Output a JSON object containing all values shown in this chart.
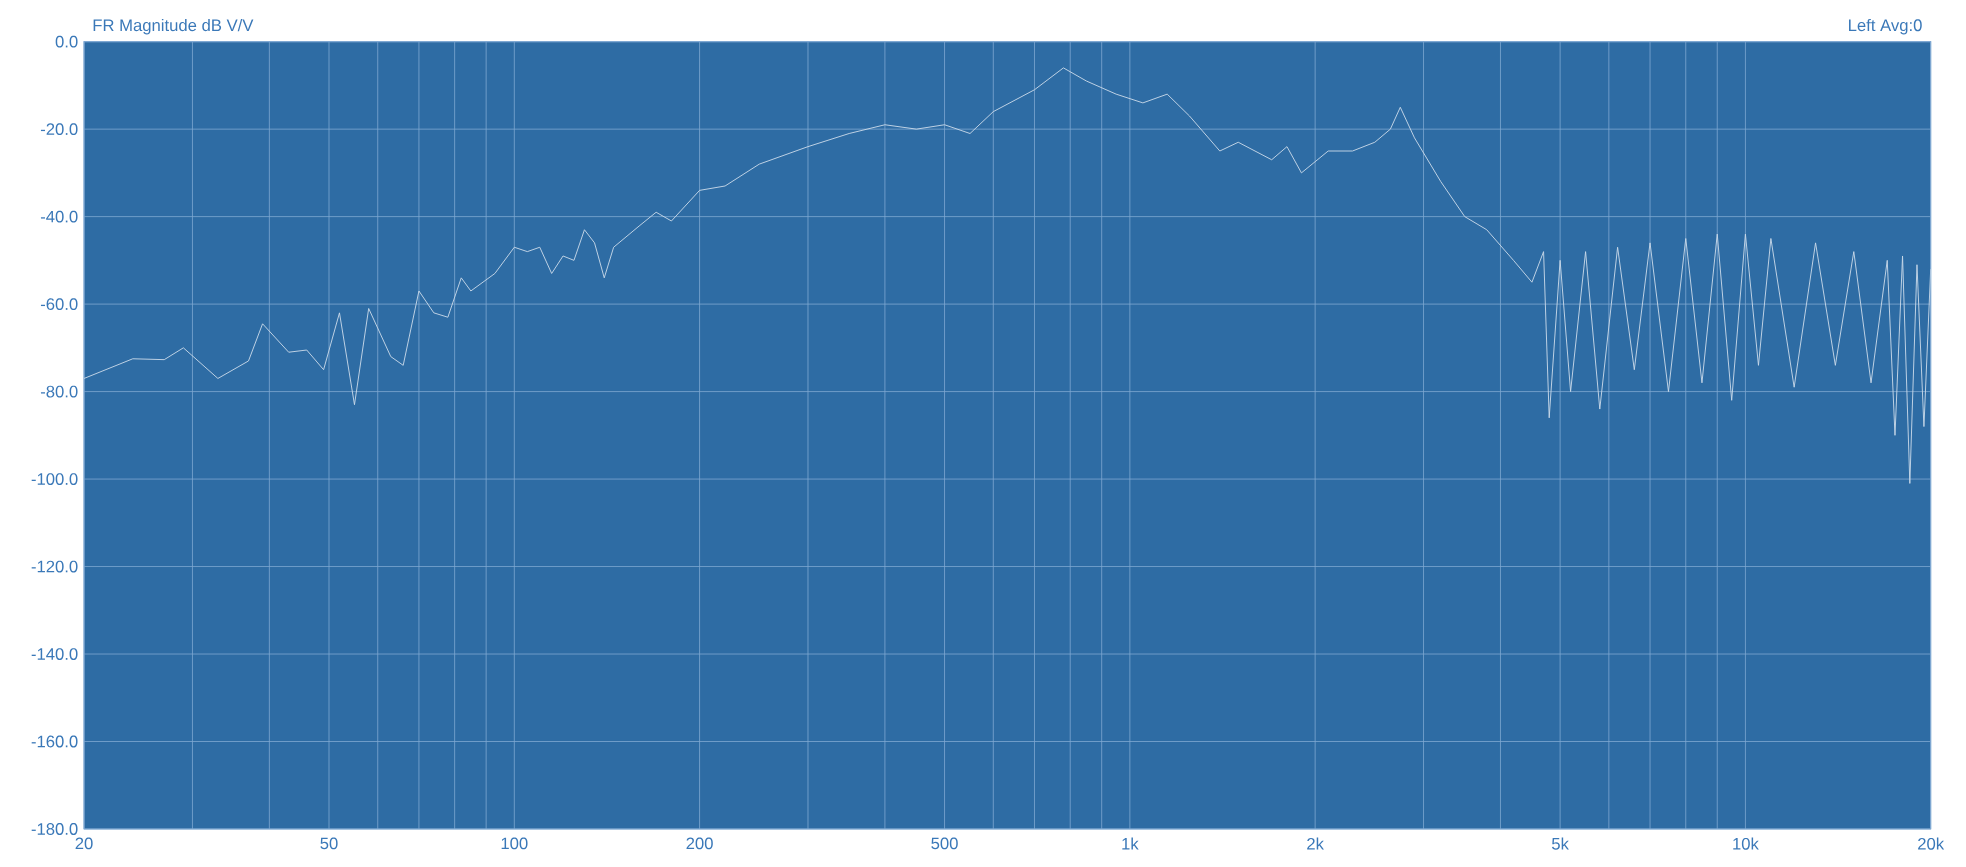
{
  "chart_data": {
    "type": "line",
    "title": "FR Magnitude dB V/V",
    "subtitle": "Left  Avg:0",
    "log": "x",
    "grid": true,
    "marker": "none",
    "line_style": "solid",
    "xlim": [
      20,
      20000
    ],
    "ylim": [
      -180,
      0
    ],
    "xticks": [
      20,
      {
        "value": 30,
        "label": null
      },
      {
        "value": 40,
        "label": null
      },
      50,
      {
        "value": 60,
        "label": null
      },
      {
        "value": 70,
        "label": null
      },
      {
        "value": 80,
        "label": null
      },
      {
        "value": 90,
        "label": null
      },
      100,
      200,
      {
        "value": 300,
        "label": null
      },
      {
        "value": 400,
        "label": null
      },
      500,
      {
        "value": 600,
        "label": null
      },
      {
        "value": 700,
        "label": null
      },
      {
        "value": 800,
        "label": null
      },
      {
        "value": 900,
        "label": null
      },
      {
        "value": 1000,
        "label": "1k"
      },
      {
        "value": 2000,
        "label": "2k"
      },
      {
        "value": 3000,
        "label": null
      },
      {
        "value": 4000,
        "label": null
      },
      {
        "value": 5000,
        "label": "5k"
      },
      {
        "value": 6000,
        "label": null
      },
      {
        "value": 7000,
        "label": null
      },
      {
        "value": 8000,
        "label": null
      },
      {
        "value": 9000,
        "label": null
      },
      {
        "value": 10000,
        "label": "10k"
      },
      {
        "value": 20000,
        "label": "20k"
      }
    ],
    "yticks": [
      {
        "value": -180,
        "label": "-180.0"
      },
      {
        "value": -160,
        "label": "-160.0"
      },
      {
        "value": -140,
        "label": "-140.0"
      },
      {
        "value": -120,
        "label": "-120.0"
      },
      {
        "value": -100,
        "label": "-100.0"
      },
      {
        "value": -80,
        "label": "-80.0"
      },
      {
        "value": -60,
        "label": "-60.0"
      },
      {
        "value": -40,
        "label": "-40.0"
      },
      {
        "value": -20,
        "label": "-20.0"
      },
      {
        "value": 0,
        "label": "0.0"
      }
    ],
    "series": [
      {
        "color": "#c8d8e8",
        "x": [
          20,
          24,
          27,
          29,
          33,
          37,
          39,
          43,
          46,
          49,
          52,
          55,
          58,
          63,
          66,
          70,
          74,
          78,
          82,
          85,
          93,
          100,
          105,
          110,
          115,
          120,
          125,
          130,
          135,
          140,
          145,
          160,
          170,
          180,
          200,
          220,
          250,
          300,
          350,
          400,
          450,
          500,
          550,
          600,
          700,
          780,
          850,
          950,
          1050,
          1150,
          1250,
          1400,
          1500,
          1700,
          1800,
          1900,
          2100,
          2300,
          2500,
          2650,
          2750,
          2900,
          3200,
          3500,
          3800,
          4200,
          4500,
          4700,
          4800,
          5000,
          5200,
          5500,
          5800,
          6200,
          6600,
          7000,
          7500,
          8000,
          8500,
          9000,
          9500,
          10000,
          10500,
          11000,
          12000,
          13000,
          14000,
          15000,
          16000,
          17000,
          17500,
          18000,
          18500,
          19000,
          19500,
          20000
        ],
        "values": [
          -77,
          -72.5,
          -72.7,
          -70,
          -77,
          -73,
          -64.5,
          -71,
          -70.5,
          -75,
          -62,
          -83,
          -61,
          -72,
          -74,
          -57,
          -62,
          -63,
          -54,
          -57,
          -53,
          -47,
          -48,
          -47,
          -53,
          -49,
          -50,
          -43,
          -46,
          -54,
          -47,
          -42,
          -39,
          -41,
          -34,
          -33,
          -28,
          -24,
          -21,
          -19,
          -20,
          -19,
          -21,
          -16,
          -11,
          -6,
          -9,
          -12,
          -14,
          -12,
          -17,
          -25,
          -23,
          -27,
          -24,
          -30,
          -25,
          -25,
          -23,
          -20,
          -15,
          -22,
          -32,
          -40,
          -43,
          -50,
          -55,
          -48,
          -86,
          -50,
          -80,
          -48,
          -84,
          -47,
          -75,
          -46,
          -80,
          -45,
          -78,
          -44,
          -82,
          -44,
          -74,
          -45,
          -79,
          -46,
          -74,
          -48,
          -78,
          -50,
          -90,
          -49,
          -101,
          -51,
          -88,
          -52
        ]
      }
    ]
  }
}
